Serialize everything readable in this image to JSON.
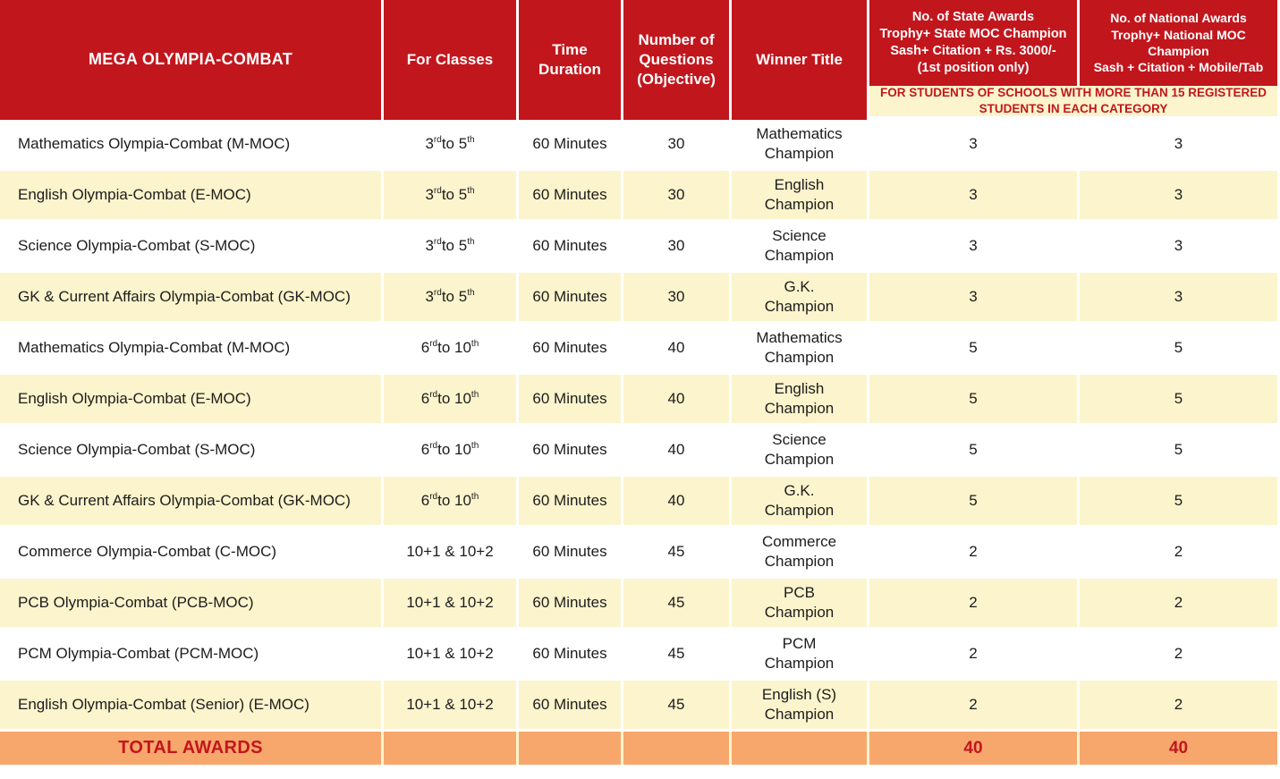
{
  "colors": {
    "header_red": "#C2161D",
    "row_cream": "#FCF4CC",
    "total_orange": "#F7A76C",
    "text_dark": "#1C1C1C",
    "separator_white": "#FFFFFF"
  },
  "table": {
    "columns": [
      {
        "label": "MEGA OLYMPIA-COMBAT"
      },
      {
        "label": "For Classes"
      },
      {
        "label": "Time\nDuration"
      },
      {
        "label": "Number of\nQuestions\n(Objective)"
      },
      {
        "label": "Winner Title"
      },
      {
        "label": "No. of State Awards\nTrophy+ State MOC Champion\nSash+ Citation + Rs. 3000/-\n(1st position only)"
      },
      {
        "label": "No. of National Awards\nTrophy+ National MOC Champion\nSash + Citation + Mobile/Tab"
      }
    ],
    "awards_note": "FOR STUDENTS OF SCHOOLS WITH MORE THAN 15 REGISTERED\nSTUDENTS IN EACH CATEGORY",
    "rows": [
      {
        "name": "Mathematics Olympia-Combat (M-MOC)",
        "classes": [
          {
            "t": "3"
          },
          {
            "t": "rd",
            "sup": true
          },
          {
            "t": " to "
          },
          {
            "t": "5"
          },
          {
            "t": "th",
            "sup": true
          }
        ],
        "duration": "60 Minutes",
        "questions": "30",
        "winner": "Mathematics\nChampion",
        "state_awards": "3",
        "national_awards": "3"
      },
      {
        "name": "English Olympia-Combat (E-MOC)",
        "classes": [
          {
            "t": "3"
          },
          {
            "t": "rd",
            "sup": true
          },
          {
            "t": " to "
          },
          {
            "t": "5"
          },
          {
            "t": "th",
            "sup": true
          }
        ],
        "duration": "60 Minutes",
        "questions": "30",
        "winner": "English\nChampion",
        "state_awards": "3",
        "national_awards": "3"
      },
      {
        "name": "Science Olympia-Combat (S-MOC)",
        "classes": [
          {
            "t": "3"
          },
          {
            "t": "rd",
            "sup": true
          },
          {
            "t": " to "
          },
          {
            "t": "5"
          },
          {
            "t": "th",
            "sup": true
          }
        ],
        "duration": "60 Minutes",
        "questions": "30",
        "winner": "Science\nChampion",
        "state_awards": "3",
        "national_awards": "3"
      },
      {
        "name": "GK & Current Affairs Olympia-Combat (GK-MOC)",
        "classes": [
          {
            "t": "3"
          },
          {
            "t": "rd",
            "sup": true
          },
          {
            "t": " to "
          },
          {
            "t": "5"
          },
          {
            "t": "th",
            "sup": true
          }
        ],
        "duration": "60 Minutes",
        "questions": "30",
        "winner": "G.K.\nChampion",
        "state_awards": "3",
        "national_awards": "3"
      },
      {
        "name": "Mathematics Olympia-Combat (M-MOC)",
        "classes": [
          {
            "t": "6"
          },
          {
            "t": "rd",
            "sup": true
          },
          {
            "t": " to "
          },
          {
            "t": "10"
          },
          {
            "t": "th",
            "sup": true
          }
        ],
        "duration": "60 Minutes",
        "questions": "40",
        "winner": "Mathematics\nChampion",
        "state_awards": "5",
        "national_awards": "5"
      },
      {
        "name": "English Olympia-Combat (E-MOC)",
        "classes": [
          {
            "t": "6"
          },
          {
            "t": "rd",
            "sup": true
          },
          {
            "t": " to "
          },
          {
            "t": "10"
          },
          {
            "t": "th",
            "sup": true
          }
        ],
        "duration": "60 Minutes",
        "questions": "40",
        "winner": "English\nChampion",
        "state_awards": "5",
        "national_awards": "5"
      },
      {
        "name": "Science Olympia-Combat (S-MOC)",
        "classes": [
          {
            "t": "6"
          },
          {
            "t": "rd",
            "sup": true
          },
          {
            "t": " to "
          },
          {
            "t": "10"
          },
          {
            "t": "th",
            "sup": true
          }
        ],
        "duration": "60 Minutes",
        "questions": "40",
        "winner": "Science\nChampion",
        "state_awards": "5",
        "national_awards": "5"
      },
      {
        "name": "GK & Current Affairs Olympia-Combat (GK-MOC)",
        "classes": [
          {
            "t": "6"
          },
          {
            "t": "rd",
            "sup": true
          },
          {
            "t": " to "
          },
          {
            "t": "10"
          },
          {
            "t": "th",
            "sup": true
          }
        ],
        "duration": "60 Minutes",
        "questions": "40",
        "winner": "G.K.\nChampion",
        "state_awards": "5",
        "national_awards": "5"
      },
      {
        "name": "Commerce Olympia-Combat (C-MOC)",
        "classes": [
          {
            "t": "10+1 & 10+2"
          }
        ],
        "duration": "60 Minutes",
        "questions": "45",
        "winner": "Commerce\nChampion",
        "state_awards": "2",
        "national_awards": "2"
      },
      {
        "name": "PCB Olympia-Combat (PCB-MOC)",
        "classes": [
          {
            "t": "10+1 & 10+2"
          }
        ],
        "duration": "60 Minutes",
        "questions": "45",
        "winner": "PCB\nChampion",
        "state_awards": "2",
        "national_awards": "2"
      },
      {
        "name": "PCM Olympia-Combat (PCM-MOC)",
        "classes": [
          {
            "t": "10+1 & 10+2"
          }
        ],
        "duration": "60 Minutes",
        "questions": "45",
        "winner": "PCM\nChampion",
        "state_awards": "2",
        "national_awards": "2"
      },
      {
        "name": "English Olympia-Combat (Senior) (E-MOC)",
        "classes": [
          {
            "t": "10+1 & 10+2"
          }
        ],
        "duration": "60 Minutes",
        "questions": "45",
        "winner": "English (S)\nChampion",
        "state_awards": "2",
        "national_awards": "2"
      }
    ],
    "total": {
      "label": "TOTAL AWARDS",
      "state_awards": "40",
      "national_awards": "40"
    }
  }
}
